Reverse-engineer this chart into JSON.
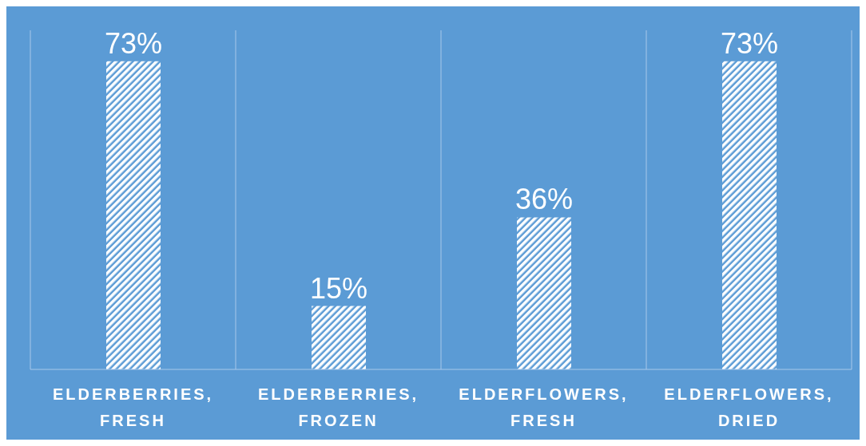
{
  "chart_data": {
    "type": "bar",
    "categories": [
      "ELDERBERRIES, FRESH",
      "ELDERBERRIES, FROZEN",
      "ELDERFLOWERS, FRESH",
      "ELDERFLOWERS, DRIED"
    ],
    "values": [
      73,
      15,
      36,
      73
    ],
    "value_labels": [
      "73%",
      "15%",
      "36%",
      "73%"
    ],
    "color": "#ffffff",
    "grid": "x"
  }
}
